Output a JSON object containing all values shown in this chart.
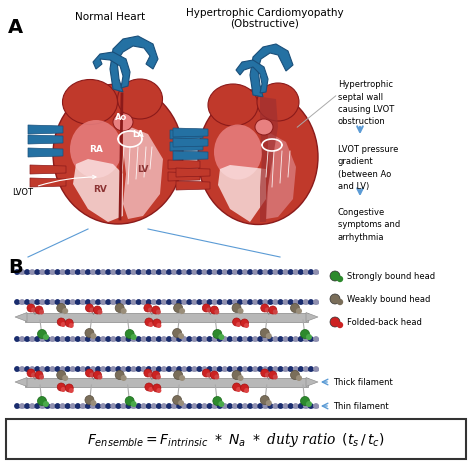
{
  "panel_A_label": "A",
  "panel_B_label": "B",
  "normal_heart_title": "Normal Heart",
  "hcm_title_line1": "Hypertrophic Cardiomyopathy",
  "hcm_title_line2": "(Obstructive)",
  "annotations_right": [
    "Hypertrophic\nseptal wall\ncausing LVOT\nobstruction",
    "LVOT pressure\ngradient\n(between Ao\nand LV)",
    "Congestive\nsymptoms and\narrhythmia"
  ],
  "legend_items": [
    {
      "label": "Strongly bound head",
      "color": "#2d8a2d"
    },
    {
      "label": "Weakly bound head",
      "color": "#7a6e5a"
    },
    {
      "label": "Folded-back head",
      "color": "#cc2222"
    }
  ],
  "filament_labels": [
    "Thick filament",
    "Thin filament"
  ],
  "bg_color": "#ffffff",
  "arrow_color": "#5b9bd5",
  "heart_red": "#c0392b",
  "heart_red_dark": "#8b1a1a",
  "heart_red_light": "#e88080",
  "heart_pink": "#f0b8b8",
  "heart_pink_light": "#fce8e8",
  "heart_blue": "#2471a3",
  "heart_blue_dark": "#1a4f7a",
  "thick_fil_color": "#b8b8b8",
  "thin_fil_color": "#1a2d6e",
  "thin_fil_dot": "#9090b0"
}
